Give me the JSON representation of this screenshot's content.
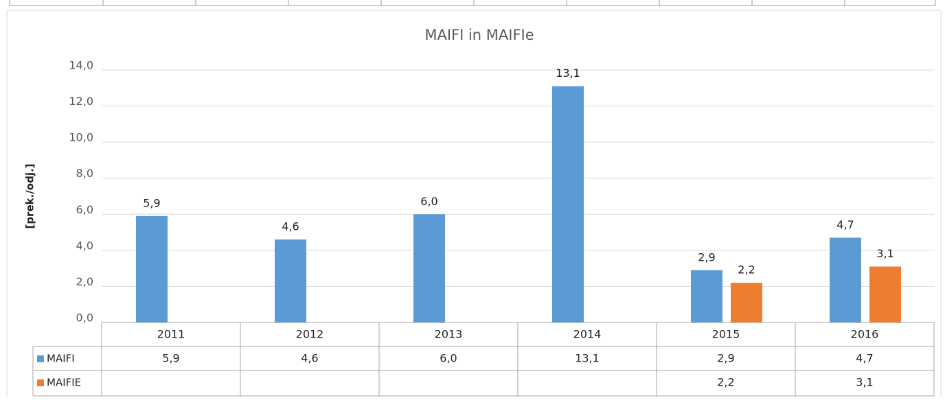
{
  "chart_data": {
    "type": "bar",
    "title": "MAIFI  in MAIFIe",
    "y_label": "[prek./odj.]",
    "categories": [
      "2011",
      "2012",
      "2013",
      "2014",
      "2015",
      "2016"
    ],
    "series": [
      {
        "name": "MAIFI",
        "color": "#5b9bd5",
        "values": [
          5.9,
          4.6,
          6.0,
          13.1,
          2.9,
          4.7
        ],
        "value_labels": [
          "5,9",
          "4,6",
          "6,0",
          "13,1",
          "2,9",
          "4,7"
        ]
      },
      {
        "name": "MAIFIE",
        "color": "#ed7d31",
        "values": [
          null,
          null,
          null,
          null,
          2.2,
          3.1
        ],
        "value_labels": [
          null,
          null,
          null,
          null,
          "2,2",
          "3,1"
        ]
      }
    ],
    "ylim": [
      0,
      14
    ],
    "yticks": [
      {
        "value": 0,
        "label": "0,0"
      },
      {
        "value": 2,
        "label": "2,0"
      },
      {
        "value": 4,
        "label": "4,0"
      },
      {
        "value": 6,
        "label": "6,0"
      },
      {
        "value": 8,
        "label": "8,0"
      },
      {
        "value": 10,
        "label": "10,0"
      },
      {
        "value": 12,
        "label": "12,0"
      },
      {
        "value": 14,
        "label": "14,0"
      }
    ],
    "grid": true
  }
}
